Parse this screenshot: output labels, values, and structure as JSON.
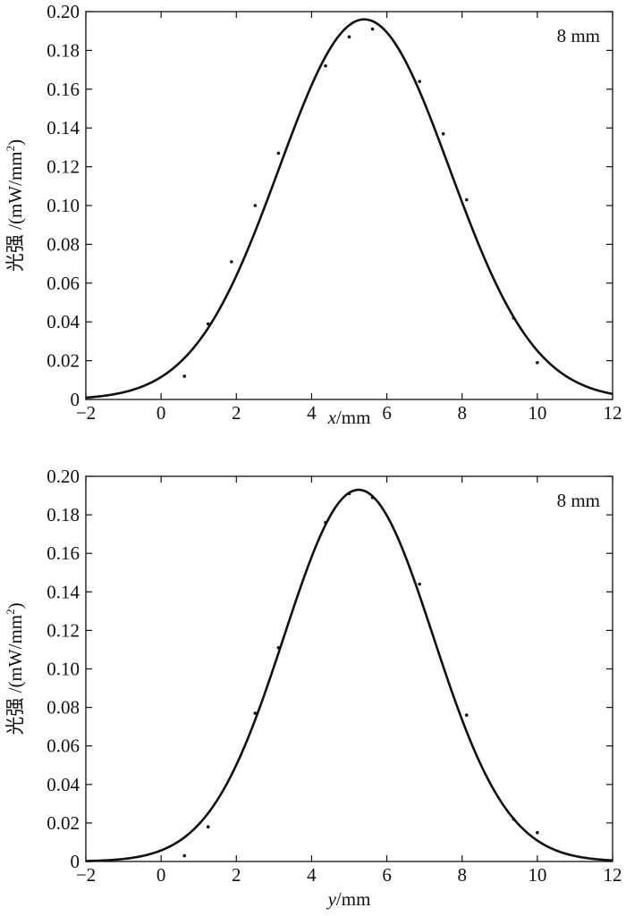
{
  "chart_data": [
    {
      "type": "line",
      "title": "",
      "annotation": "8 mm",
      "xlabel": {
        "var": "x",
        "unit": "/mm"
      },
      "ylabel": {
        "text": "光强 /(mW/mm",
        "sup": "2",
        "close": ")"
      },
      "xlim": [
        -2,
        12
      ],
      "ylim": [
        0,
        0.2
      ],
      "x_ticks": [
        -2,
        0,
        2,
        4,
        6,
        8,
        10,
        12
      ],
      "y_ticks": [
        0,
        0.02,
        0.04,
        0.06,
        0.08,
        0.1,
        0.12,
        0.14,
        0.16,
        0.18,
        0.2
      ],
      "x_tick_labels": [
        "−2",
        "0",
        "2",
        "4",
        "6",
        "8",
        "10",
        "12"
      ],
      "y_tick_labels": [
        "0",
        "0.02",
        "0.04",
        "0.06",
        "0.08",
        "0.10",
        "0.12",
        "0.14",
        "0.16",
        "0.18",
        "0.20"
      ],
      "grid": false,
      "fit_curve": {
        "model": "gaussian",
        "amplitude": 0.196,
        "center": 5.4,
        "sigma": 2.27
      },
      "points": [
        {
          "x": 0.62,
          "y": 0.012
        },
        {
          "x": 1.25,
          "y": 0.039
        },
        {
          "x": 1.87,
          "y": 0.071
        },
        {
          "x": 2.5,
          "y": 0.1
        },
        {
          "x": 3.12,
          "y": 0.127
        },
        {
          "x": 4.37,
          "y": 0.172
        },
        {
          "x": 5.0,
          "y": 0.187
        },
        {
          "x": 5.62,
          "y": 0.191
        },
        {
          "x": 6.87,
          "y": 0.164
        },
        {
          "x": 7.5,
          "y": 0.137
        },
        {
          "x": 8.12,
          "y": 0.103
        },
        {
          "x": 9.37,
          "y": 0.042
        },
        {
          "x": 10.0,
          "y": 0.019
        }
      ]
    },
    {
      "type": "line",
      "title": "",
      "annotation": "8 mm",
      "xlabel": {
        "var": "y",
        "unit": "/mm"
      },
      "ylabel": {
        "text": "光强 /(mW/mm",
        "sup": "2",
        "close": ")"
      },
      "xlim": [
        -2,
        12
      ],
      "ylim": [
        0,
        0.2
      ],
      "x_ticks": [
        -2,
        0,
        2,
        4,
        6,
        8,
        10,
        12
      ],
      "y_ticks": [
        0,
        0.02,
        0.04,
        0.06,
        0.08,
        0.1,
        0.12,
        0.14,
        0.16,
        0.18,
        0.2
      ],
      "x_tick_labels": [
        "−2",
        "0",
        "2",
        "4",
        "6",
        "8",
        "10",
        "12"
      ],
      "y_tick_labels": [
        "0",
        "0.02",
        "0.04",
        "0.06",
        "0.08",
        "0.10",
        "0.12",
        "0.14",
        "0.16",
        "0.18",
        "0.20"
      ],
      "grid": false,
      "fit_curve": {
        "model": "gaussian",
        "amplitude": 0.193,
        "center": 5.25,
        "sigma": 1.98
      },
      "points": [
        {
          "x": 0.62,
          "y": 0.003
        },
        {
          "x": 1.25,
          "y": 0.018
        },
        {
          "x": 2.5,
          "y": 0.077
        },
        {
          "x": 3.12,
          "y": 0.111
        },
        {
          "x": 4.37,
          "y": 0.176
        },
        {
          "x": 5.0,
          "y": 0.191
        },
        {
          "x": 5.62,
          "y": 0.189
        },
        {
          "x": 6.87,
          "y": 0.144
        },
        {
          "x": 8.12,
          "y": 0.076
        },
        {
          "x": 9.37,
          "y": 0.022
        },
        {
          "x": 10.0,
          "y": 0.015
        }
      ]
    }
  ]
}
